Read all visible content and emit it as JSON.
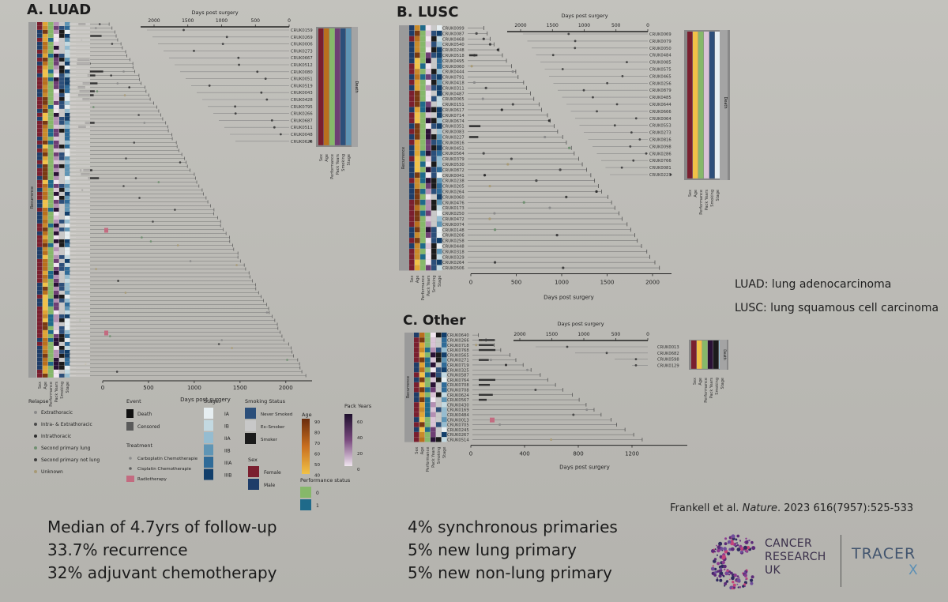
{
  "panels": {
    "luad": {
      "title": "A. LUAD"
    },
    "lusc": {
      "title": "B. LUSC"
    },
    "other": {
      "title": "C. Other"
    }
  },
  "side_notes": {
    "luad": "LUAD: lung adenocarcinoma",
    "lusc": "LUSC: lung squamous cell carcinoma"
  },
  "bottom_left": [
    "Median of 4.7yrs of follow-up",
    "33.7% recurrence",
    "32% adjuvant chemotherapy"
  ],
  "bottom_right": [
    "4% synchronous primaries",
    "5% new lung primary",
    "5% new non-lung primary"
  ],
  "citation": {
    "authors": "Frankell et al.",
    "journal": "Nature",
    "details": "2023 616(7957):525-533"
  },
  "logos": {
    "cruk_lines": [
      "CANCER",
      "RESEARCH",
      "UK"
    ],
    "tracerx_main": "TRACER",
    "tracerx_x": "X"
  },
  "colors": {
    "accent_cursor": "#3fae3a",
    "cruk_purple": "#5b2a78",
    "tracer_blue": "#41546e"
  },
  "chart_data": [
    {
      "type": "swimmer",
      "panel": "A. LUAD",
      "xlabel": "Days post surgery",
      "top_axis_label": "Days post surgery",
      "ticks": [
        "0",
        "500",
        "1000",
        "1500",
        "2000"
      ],
      "top_ticks": [
        "2000",
        "1500",
        "1000",
        "500",
        "0"
      ],
      "xlim": [
        0,
        2300
      ],
      "side_label": "Recurrence",
      "main_patient_count": 90,
      "inset_patients": [
        "CRUK0159",
        "CRUK0269",
        "CRUK0006",
        "CRUK0273",
        "CRUK0667",
        "CRUK0512",
        "CRUK0080",
        "CRUK0051",
        "CRUK0519",
        "CRUK0043",
        "CRUK0428",
        "CRUK0795",
        "CRUK0266",
        "CRUK0687",
        "CRUK0511",
        "CRUK0048",
        "CRUK0628"
      ],
      "inset_label": "Death",
      "annotation_columns": [
        "Sex",
        "Age",
        "Performance",
        "Pack Years",
        "Smoking",
        "Stage"
      ]
    },
    {
      "type": "swimmer",
      "panel": "B. LUSC",
      "xlabel": "Days post surgery",
      "top_axis_label": "Days post surgery",
      "ticks": [
        "0",
        "500",
        "1000",
        "1500",
        "2000"
      ],
      "top_ticks": [
        "2000",
        "1500",
        "1000",
        "500",
        "0"
      ],
      "xlim": [
        0,
        2200
      ],
      "side_label": "Recurrence",
      "main_patient_labels": [
        "CRUK0099",
        "CRUK0087",
        "CRUK0468",
        "CRUK0540",
        "CRUK0248",
        "CRUK0518",
        "CRUK0495",
        "CRUK0060",
        "CRUK0444",
        "CRUK0791",
        "CRUK0418",
        "CRUK0311",
        "CRUK0487",
        "CRUK0065",
        "CRUK0151",
        "CRUK0617",
        "CRUK0714",
        "CRUK0674",
        "CRUK0351",
        "CRUK0083",
        "CRUK0227",
        "CRUK0816",
        "CRUK0451",
        "CRUK0564",
        "CRUK0379",
        "CRUK0530",
        "CRUK0872",
        "CRUK0041",
        "CRUK0238",
        "CRUK0205",
        "CRUK0264",
        "CRUK0060",
        "CRUK0476",
        "CRUK0173",
        "CRUK0250",
        "CRUK0472",
        "CRUK0074",
        "CRUK0148",
        "CRUK0206",
        "CRUK0258",
        "CRUK0448",
        "CRUK0318",
        "CRUK0329",
        "CRUK0264",
        "CRUK0506"
      ],
      "inset_patients": [
        "CRUK0069",
        "CRUK0079",
        "CRUK0050",
        "CRUK0484",
        "CRUK0085",
        "CRUK0575",
        "CRUK0465",
        "CRUK0256",
        "CRUK0879",
        "CRUK0485",
        "CRUK0644",
        "CRUK0666",
        "CRUK0064",
        "CRUK0553",
        "CRUK0273",
        "CRUK0816",
        "CRUK0098",
        "CRUK0286",
        "CRUK0766",
        "CRUK0081",
        "CRUK0223"
      ],
      "inset_label": "Death",
      "annotation_columns": [
        "Sex",
        "Age",
        "Performance",
        "Pack Years",
        "Smoking",
        "Stage"
      ]
    },
    {
      "type": "swimmer",
      "panel": "C. Other",
      "xlabel": "Days post surgery",
      "top_axis_label": "Days post surgery",
      "ticks": [
        "0",
        "400",
        "800",
        "1200"
      ],
      "top_ticks": [
        "2000",
        "1500",
        "1000",
        "500",
        "0"
      ],
      "xlim": [
        0,
        1400
      ],
      "side_label": "Recurrence",
      "main_patient_labels": [
        "CRUK0640",
        "CRUK0266",
        "CRUK0718",
        "CRUK0768",
        "CRUK0565",
        "CRUK0271",
        "CRUK0719",
        "CRUK0325",
        "CRUK0587",
        "CRUK0764",
        "CRUK0708",
        "CRUK0708",
        "CRUK0624",
        "CRUK0567",
        "CRUK0430",
        "CRUK0169",
        "CRUK0484",
        "CRUK0013",
        "CRUK0705",
        "CRUK0245",
        "CRUK0267",
        "CRUK0514"
      ],
      "inset_patients": [
        "CRUK0013",
        "CRUK0682",
        "CRUK0598",
        "CRUK0129"
      ],
      "inset_label": "Death",
      "annotation_columns": [
        "Sex",
        "Age",
        "Performance",
        "Pack Years",
        "Smoking",
        "Stage"
      ]
    }
  ],
  "legend": {
    "relapse": {
      "title": "Relapse",
      "items": [
        "Extrathoracic",
        "Intra- & Extrathoracic",
        "Intrathoracic",
        "Second primary lung",
        "Second primary not lung",
        "Unknown"
      ],
      "colors": [
        "#8a8a8a",
        "#4a4a4a",
        "#2e2e2e",
        "#6f8f70",
        "#3e3e3e",
        "#a79a76"
      ]
    },
    "event": {
      "title": "Event",
      "items": [
        "Death",
        "Censored"
      ],
      "colors": [
        "#111111",
        "#5a5a5a"
      ]
    },
    "treatment": {
      "title": "Treatment",
      "items": [
        "Carboplatin Chemotherapie",
        "Cisplatin Chemotherapie",
        "Radiotherapy"
      ],
      "colors": [
        "#8c8c8c",
        "#5f5f5f",
        "#c36b80"
      ]
    },
    "stage": {
      "title": "Stage",
      "items": [
        "IA",
        "IB",
        "IIA",
        "IIB",
        "IIIA",
        "IIIB"
      ],
      "colors": [
        "#e6eef1",
        "#c3d9e1",
        "#95bcd0",
        "#5f95b5",
        "#2f6b98",
        "#123f6b"
      ]
    },
    "smoking": {
      "title": "Smoking Status",
      "items": [
        "Never Smoked",
        "Ex–Smoker",
        "Smoker"
      ],
      "colors": [
        "#2c4f7a",
        "#c8c8c8",
        "#1b1b1b"
      ]
    },
    "sex": {
      "title": "Sex",
      "items": [
        "Female",
        "Male"
      ],
      "colors": [
        "#7a1f2f",
        "#1e3d69"
      ]
    },
    "performance": {
      "title": "Performance status",
      "items": [
        "0",
        "1"
      ],
      "colors": [
        "#86b86a",
        "#1f6a8a"
      ]
    },
    "age": {
      "title": "Age",
      "ticks": [
        "90",
        "80",
        "70",
        "60",
        "50",
        "40"
      ],
      "color_top": "#6a2c0d",
      "color_bottom": "#f1c247"
    },
    "pack_years": {
      "title": "Pack Years",
      "ticks": [
        "60",
        "40",
        "20",
        "0"
      ],
      "color_top": "#1e0f2d",
      "color_bottom": "#f0e5ef"
    }
  }
}
